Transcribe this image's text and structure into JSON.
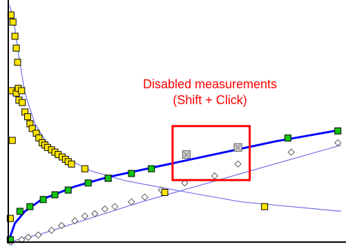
{
  "colors": {
    "background": "#ffffff",
    "axis": "#000000",
    "dark_line": "#0000ff",
    "light_line": "#6f6fe6",
    "yellow_marker": "#ffe400",
    "green_marker": "#12c312",
    "disabled_marker": "#d0d0d0",
    "white_marker": "#ffffff",
    "annotation": "#ff0000"
  },
  "chart_data": {
    "type": "scatter",
    "title": "",
    "xlabel": "",
    "ylabel": "",
    "xlim": [
      0,
      100
    ],
    "ylim": [
      0,
      100
    ],
    "grid": false,
    "legend": "none",
    "series": [
      {
        "key": "yellow_decay",
        "marker": "square",
        "marker_color": "yellow_marker",
        "line_color": "light_line",
        "points": [
          [
            0.8,
            96
          ],
          [
            1.4,
            93
          ],
          [
            2.0,
            87
          ],
          [
            2.4,
            82
          ],
          [
            2.8,
            76
          ],
          [
            1.4,
            64
          ],
          [
            1.0,
            64
          ],
          [
            2.4,
            63
          ],
          [
            3.0,
            65
          ],
          [
            4.0,
            64
          ],
          [
            3.2,
            60
          ],
          [
            4.2,
            59
          ],
          [
            5.0,
            55
          ],
          [
            5.8,
            53
          ],
          [
            6.5,
            50
          ],
          [
            7.2,
            48
          ],
          [
            8.4,
            46
          ],
          [
            9.2,
            44
          ],
          [
            10.2,
            42
          ],
          [
            11.0,
            41
          ],
          [
            11.8,
            40
          ],
          [
            13.0,
            39
          ],
          [
            14.0,
            38
          ],
          [
            15.0,
            37
          ],
          [
            16.2,
            36
          ],
          [
            17.2,
            35
          ],
          [
            18.0,
            34
          ],
          [
            19.0,
            33
          ],
          [
            1.2,
            43
          ],
          [
            23.0,
            31
          ],
          [
            30.0,
            27
          ],
          [
            47.0,
            21
          ],
          [
            77.0,
            15
          ],
          [
            0.6,
            10
          ]
        ],
        "fit": [
          [
            0.4,
            100
          ],
          [
            1.5,
            95
          ],
          [
            3,
            80
          ],
          [
            5,
            63
          ],
          [
            8,
            50
          ],
          [
            12,
            41
          ],
          [
            18,
            35
          ],
          [
            25,
            30
          ],
          [
            35,
            26
          ],
          [
            50,
            22
          ],
          [
            70,
            17
          ],
          [
            100,
            13
          ]
        ]
      },
      {
        "key": "green_rising",
        "marker": "square",
        "marker_color": "green_marker",
        "line_color": "dark_line",
        "points": [
          [
            0.6,
            1
          ],
          [
            3.5,
            13
          ],
          [
            6.5,
            15
          ],
          [
            10.5,
            18
          ],
          [
            14.0,
            20
          ],
          [
            18.0,
            22
          ],
          [
            24.0,
            25
          ],
          [
            30.0,
            27
          ],
          [
            37.0,
            29
          ],
          [
            43.0,
            31
          ],
          [
            84.0,
            44
          ],
          [
            99.0,
            47
          ]
        ],
        "disabled_points": [
          [
            53.5,
            37
          ],
          [
            69.0,
            40
          ]
        ],
        "fit": [
          [
            0,
            0
          ],
          [
            2,
            8
          ],
          [
            5,
            13
          ],
          [
            10,
            18
          ],
          [
            20,
            23.5
          ],
          [
            30,
            27.5
          ],
          [
            40,
            30.5
          ],
          [
            50,
            33.5
          ],
          [
            60,
            36.5
          ],
          [
            70,
            39.5
          ],
          [
            80,
            42.5
          ],
          [
            90,
            45
          ],
          [
            100,
            47.5
          ]
        ]
      },
      {
        "key": "white_rising",
        "marker": "diamond",
        "marker_color": "white_marker",
        "line_color": "light_line",
        "points": [
          [
            0.8,
            0
          ],
          [
            4.0,
            1
          ],
          [
            6.0,
            2
          ],
          [
            9.0,
            3
          ],
          [
            13.0,
            5
          ],
          [
            16.0,
            7
          ],
          [
            20.0,
            9
          ],
          [
            23.0,
            11
          ],
          [
            26.0,
            12
          ],
          [
            29.0,
            14
          ],
          [
            32.0,
            15
          ],
          [
            37.0,
            17
          ],
          [
            41.0,
            19
          ],
          [
            46.0,
            22
          ],
          [
            53.0,
            25
          ],
          [
            62.0,
            28
          ],
          [
            69.0,
            33
          ],
          [
            85.0,
            38
          ],
          [
            99.0,
            42
          ]
        ],
        "fit": [
          [
            0,
            0
          ],
          [
            10,
            3.5
          ],
          [
            20,
            8
          ],
          [
            30,
            12.5
          ],
          [
            40,
            17
          ],
          [
            50,
            21
          ],
          [
            60,
            25
          ],
          [
            70,
            29
          ],
          [
            80,
            33
          ],
          [
            90,
            37
          ],
          [
            100,
            41
          ]
        ]
      }
    ],
    "annotations": [
      {
        "lines": [
          "Disabled measurements",
          "(Shift + Click)"
        ],
        "encloses": "green_rising.disabled_points"
      }
    ]
  }
}
